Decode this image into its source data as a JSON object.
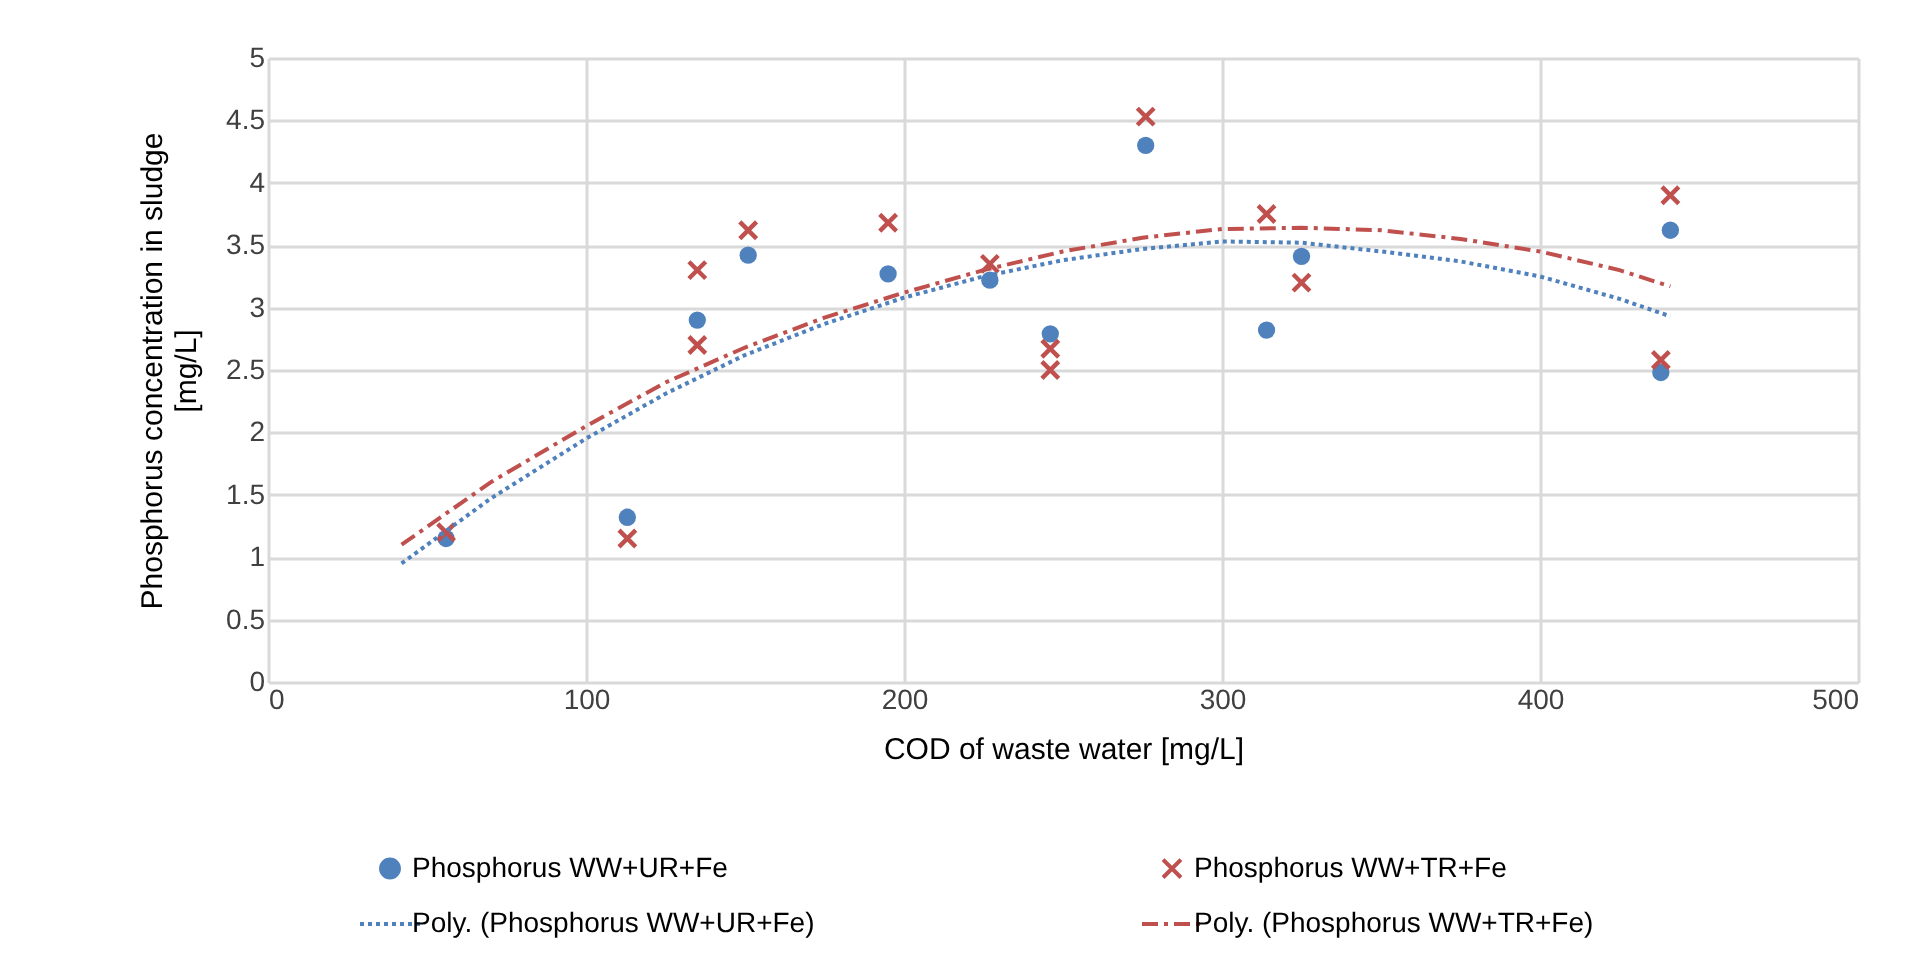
{
  "chart_data": {
    "type": "scatter",
    "xlabel": "COD of waste water [mg/L]",
    "ylabel": "Phosphorus concentration in sludge\n[mg/L]",
    "xlim": [
      0,
      500
    ],
    "xticks": [
      0,
      100,
      200,
      300,
      400,
      500
    ],
    "ylim": [
      0,
      5
    ],
    "yticks": [
      0,
      0.5,
      1,
      1.5,
      2,
      2.5,
      3,
      3.5,
      4,
      4.5,
      5
    ],
    "grid": true,
    "legend": "bottom",
    "series": [
      {
        "name": "Phosphorus WW+UR+Fe",
        "type": "scatter",
        "marker": "circle",
        "color": "#4f81bd",
        "x": [
          56,
          113,
          135,
          151,
          195,
          227,
          246,
          276,
          314,
          325,
          438,
          441
        ],
        "values": [
          1.15,
          1.32,
          2.9,
          3.42,
          3.27,
          3.22,
          2.79,
          4.3,
          2.82,
          3.41,
          2.48,
          3.62
        ]
      },
      {
        "name": "Phosphorus WW+TR+Fe",
        "type": "scatter",
        "marker": "cross",
        "color": "#c0504d",
        "x": [
          56,
          113,
          135,
          135,
          151,
          195,
          227,
          246,
          246,
          276,
          314,
          325,
          438,
          441
        ],
        "values": [
          1.2,
          1.15,
          3.3,
          2.7,
          3.62,
          3.68,
          3.35,
          2.67,
          2.5,
          4.53,
          3.75,
          3.2,
          2.58,
          3.9
        ]
      },
      {
        "name": "Poly. (Phosphorus WW+UR+Fe)",
        "type": "line",
        "line_style": "dotted",
        "color": "#4f81bd",
        "x": [
          42,
          70,
          100,
          125,
          150,
          175,
          200,
          225,
          250,
          275,
          300,
          325,
          350,
          375,
          400,
          425,
          441
        ],
        "values": [
          0.95,
          1.47,
          1.95,
          2.31,
          2.62,
          2.87,
          3.08,
          3.25,
          3.38,
          3.47,
          3.53,
          3.52,
          3.45,
          3.37,
          3.25,
          3.07,
          2.93
        ]
      },
      {
        "name": "Poly. (Phosphorus WW+TR+Fe)",
        "type": "line",
        "line_style": "dashed",
        "color": "#c0504d",
        "x": [
          42,
          70,
          100,
          125,
          150,
          175,
          200,
          225,
          250,
          275,
          300,
          325,
          350,
          375,
          400,
          425,
          441
        ],
        "values": [
          1.1,
          1.6,
          2.05,
          2.4,
          2.68,
          2.92,
          3.12,
          3.3,
          3.45,
          3.56,
          3.63,
          3.64,
          3.62,
          3.55,
          3.45,
          3.3,
          3.17
        ]
      }
    ]
  }
}
